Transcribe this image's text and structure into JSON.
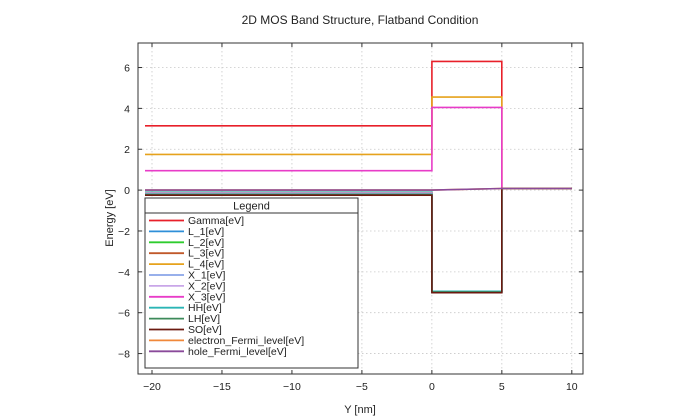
{
  "chart_data": {
    "type": "line",
    "title": "2D MOS Band Structure, Flatband Condition",
    "xlabel": "Y [nm]",
    "ylabel": "Energy [eV]",
    "xlim": [
      -21,
      10.8
    ],
    "ylim": [
      -9,
      7.2
    ],
    "xticks": [
      -20,
      -15,
      -10,
      -5,
      0,
      5,
      10
    ],
    "yticks": [
      -8,
      -6,
      -4,
      -2,
      0,
      2,
      4,
      6
    ],
    "grid": true,
    "legend": {
      "title": "Legend",
      "placement": "lower-left"
    },
    "series": [
      {
        "name": "Gamma[eV]",
        "color": "#e8202a",
        "points": [
          [
            -20.5,
            3.15
          ],
          [
            0,
            3.15
          ],
          [
            0,
            6.3
          ],
          [
            5,
            6.3
          ],
          [
            5,
            0.08
          ],
          [
            10,
            0.08
          ]
        ]
      },
      {
        "name": "L_1[eV]",
        "color": "#2f8fd8",
        "points": [
          [
            -20.5,
            -0.1
          ],
          [
            0,
            -0.1
          ],
          [
            0,
            -4.95
          ],
          [
            5,
            -4.95
          ],
          [
            5,
            0.08
          ],
          [
            10,
            0.08
          ]
        ]
      },
      {
        "name": "L_2[eV]",
        "color": "#2ecc2e",
        "points": [
          [
            -20.5,
            -0.12
          ],
          [
            0,
            -0.12
          ],
          [
            0,
            -4.95
          ],
          [
            5,
            -4.95
          ],
          [
            5,
            0.08
          ],
          [
            10,
            0.08
          ]
        ]
      },
      {
        "name": "L_3[eV]",
        "color": "#c0582a",
        "points": [
          [
            -20.5,
            -0.13
          ],
          [
            0,
            -0.13
          ],
          [
            0,
            -4.98
          ],
          [
            5,
            -4.98
          ],
          [
            5,
            0.08
          ],
          [
            10,
            0.08
          ]
        ]
      },
      {
        "name": "L_4[eV]",
        "color": "#e6a21c",
        "points": [
          [
            -20.5,
            1.75
          ],
          [
            0,
            1.75
          ],
          [
            0,
            4.55
          ],
          [
            5,
            4.55
          ],
          [
            5,
            0.08
          ],
          [
            10,
            0.08
          ]
        ]
      },
      {
        "name": "X_1[eV]",
        "color": "#8aa4e8",
        "points": [
          [
            -20.5,
            -0.14
          ],
          [
            0,
            -0.14
          ],
          [
            0,
            -4.98
          ],
          [
            5,
            -4.98
          ],
          [
            5,
            0.08
          ],
          [
            10,
            0.08
          ]
        ]
      },
      {
        "name": "X_2[eV]",
        "color": "#c9a6e8",
        "points": [
          [
            -20.5,
            -0.15
          ],
          [
            0,
            -0.15
          ],
          [
            0,
            -4.99
          ],
          [
            5,
            -4.99
          ],
          [
            5,
            0.08
          ],
          [
            10,
            0.08
          ]
        ]
      },
      {
        "name": "X_3[eV]",
        "color": "#e83cc8",
        "points": [
          [
            -20.5,
            0.95
          ],
          [
            0,
            0.95
          ],
          [
            0,
            4.05
          ],
          [
            5,
            4.05
          ],
          [
            5,
            0.08
          ],
          [
            10,
            0.08
          ]
        ]
      },
      {
        "name": "HH[eV]",
        "color": "#2ab5b5",
        "points": [
          [
            -20.5,
            -0.2
          ],
          [
            0,
            -0.2
          ],
          [
            0,
            -4.95
          ],
          [
            5,
            -4.95
          ],
          [
            5,
            0.08
          ],
          [
            10,
            0.08
          ]
        ]
      },
      {
        "name": "LH[eV]",
        "color": "#3d8a5a",
        "points": [
          [
            -20.5,
            -0.22
          ],
          [
            0,
            -0.22
          ],
          [
            0,
            -4.99
          ],
          [
            5,
            -4.99
          ],
          [
            5,
            0.08
          ],
          [
            10,
            0.08
          ]
        ]
      },
      {
        "name": "SO[eV]",
        "color": "#6b1a10",
        "points": [
          [
            -20.5,
            -0.25
          ],
          [
            0,
            -0.25
          ],
          [
            0,
            -5.02
          ],
          [
            5,
            -5.02
          ],
          [
            5,
            0.08
          ],
          [
            10,
            0.08
          ]
        ]
      },
      {
        "name": "electron_Fermi_level[eV]",
        "color": "#f0883a",
        "points": [
          [
            -20.5,
            0.0
          ],
          [
            0,
            0.0
          ],
          [
            5,
            0.08
          ],
          [
            10,
            0.08
          ]
        ]
      },
      {
        "name": "hole_Fermi_level[eV]",
        "color": "#8a4a9a",
        "points": [
          [
            -20.5,
            0.0
          ],
          [
            0,
            0.0
          ],
          [
            5,
            0.08
          ],
          [
            10,
            0.08
          ]
        ]
      }
    ]
  }
}
